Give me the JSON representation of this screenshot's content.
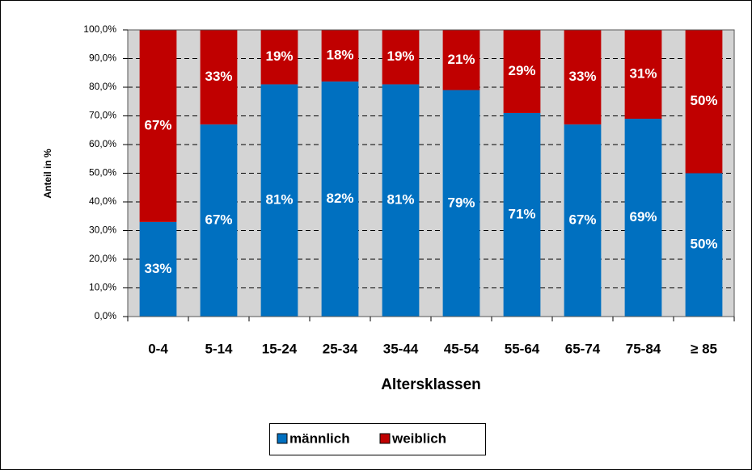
{
  "chart_data": {
    "type": "stacked_bar",
    "categories": [
      "0-4",
      "5-14",
      "15-24",
      "25-34",
      "35-44",
      "45-54",
      "55-64",
      "65-74",
      "75-84",
      "≥ 85"
    ],
    "series": [
      {
        "name": "männlich",
        "color": "#0070c0",
        "values": [
          33,
          67,
          81,
          82,
          81,
          79,
          71,
          67,
          69,
          50
        ],
        "value_labels": [
          "33%",
          "67%",
          "81%",
          "82%",
          "81%",
          "79%",
          "71%",
          "67%",
          "69%",
          "50%"
        ]
      },
      {
        "name": "weiblich",
        "color": "#c00000",
        "values": [
          67,
          33,
          19,
          18,
          19,
          21,
          29,
          33,
          31,
          50
        ],
        "value_labels": [
          "67%",
          "33%",
          "19%",
          "18%",
          "19%",
          "21%",
          "29%",
          "33%",
          "31%",
          "50%"
        ]
      }
    ],
    "xlabel": "Altersklassen",
    "ylabel": "Anteil in %",
    "ylim": [
      0,
      100
    ],
    "yticks": [
      {
        "value": 0,
        "label": "0,0%"
      },
      {
        "value": 10,
        "label": "10,0%"
      },
      {
        "value": 20,
        "label": "20,0%"
      },
      {
        "value": 30,
        "label": "30,0%"
      },
      {
        "value": 40,
        "label": "40,0%"
      },
      {
        "value": 50,
        "label": "50,0%"
      },
      {
        "value": 60,
        "label": "60,0%"
      },
      {
        "value": 70,
        "label": "70,0%"
      },
      {
        "value": 80,
        "label": "80,0%"
      },
      {
        "value": 90,
        "label": "90,0%"
      },
      {
        "value": 100,
        "label": "100,0%"
      }
    ],
    "grid": true,
    "legend": "bottom"
  }
}
